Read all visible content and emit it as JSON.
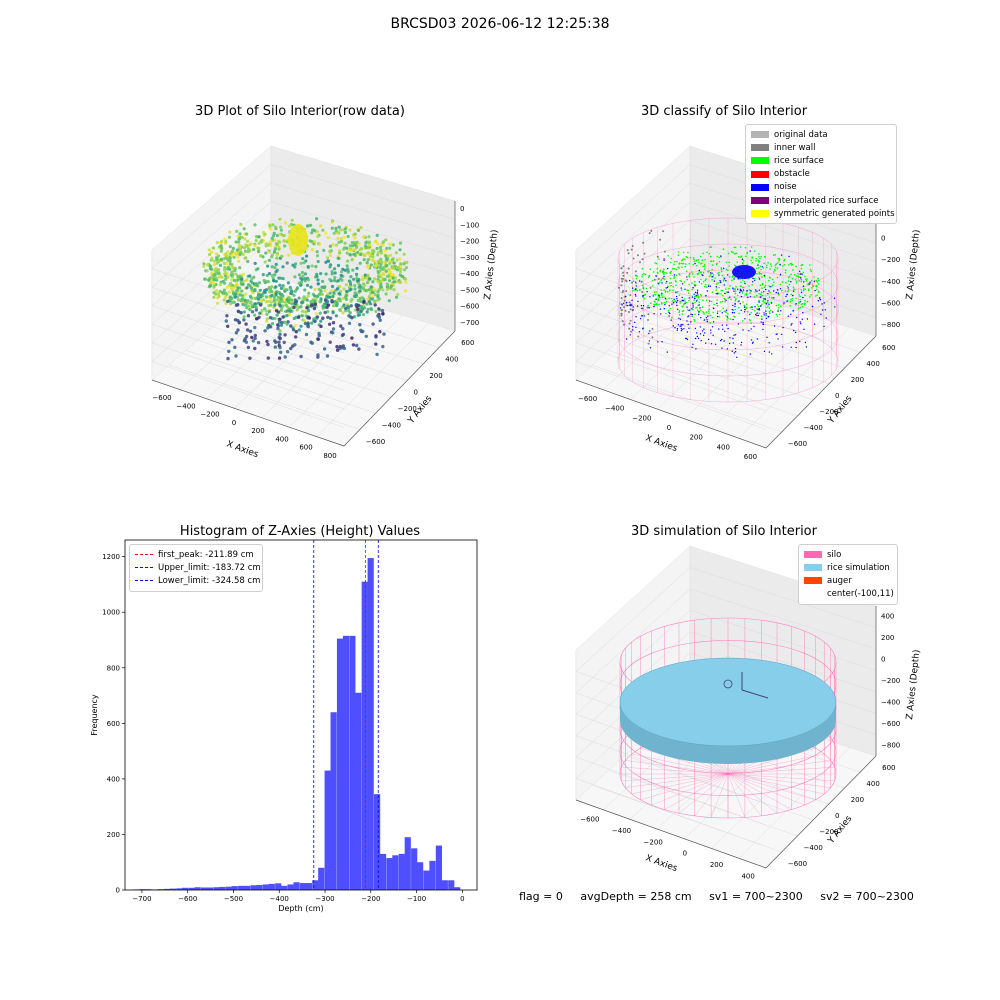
{
  "figure": {
    "suptitle": "BRCSD03 2026-06-12 12:25:38"
  },
  "chart_data": [
    {
      "type": "scatter",
      "title": "3D Plot of Silo Interior(row data)",
      "xlabel": "X Axies",
      "ylabel": "Y Axies",
      "zlabel": "Z Axies (Depth)",
      "x_ticks": [
        "−600",
        "−400",
        "−200",
        "0",
        "200",
        "400",
        "600",
        "800"
      ],
      "y_ticks": [
        "−600",
        "−400",
        "−200",
        "0",
        "200",
        "400",
        "600"
      ],
      "z_ticks": [
        "0",
        "−100",
        "−200",
        "−300",
        "−400",
        "−500",
        "−600",
        "−700"
      ],
      "colormap": "viridis"
    },
    {
      "type": "scatter",
      "title": "3D classify of Silo Interior",
      "xlabel": "X Axies",
      "ylabel": "Y Axies",
      "zlabel": "Z Axies (Depth)",
      "x_ticks": [
        "−600",
        "−400",
        "−200",
        "0",
        "200",
        "400",
        "600"
      ],
      "y_ticks": [
        "−600",
        "−400",
        "−200",
        "0",
        "200",
        "400",
        "600"
      ],
      "z_ticks": [
        "200",
        "0",
        "−200",
        "−400",
        "−600",
        "−800"
      ],
      "legend": [
        {
          "label": "original data",
          "color": "#b3b3b3"
        },
        {
          "label": "inner wall",
          "color": "#808080"
        },
        {
          "label": "rice surface",
          "color": "#00ff00"
        },
        {
          "label": "obstacle",
          "color": "#ff0000"
        },
        {
          "label": "noise",
          "color": "#0000ff"
        },
        {
          "label": "interpolated rice surface",
          "color": "#800080"
        },
        {
          "label": "symmetric generated points",
          "color": "#ffff00"
        }
      ]
    },
    {
      "type": "bar",
      "title": "Histogram of Z-Axies (Height) Values",
      "xlabel": "Depth (cm)",
      "ylabel": "Frequency",
      "xlim": [
        -737,
        32
      ],
      "ylim": [
        0,
        1260
      ],
      "x_ticks": [
        -700,
        -600,
        -500,
        -400,
        -300,
        -200,
        -100,
        0
      ],
      "x_tick_labels": [
        "−700",
        "−600",
        "−500",
        "−400",
        "−300",
        "−200",
        "−100",
        "0"
      ],
      "y_ticks": [
        0,
        200,
        400,
        600,
        800,
        1000,
        1200
      ],
      "y_tick_labels": [
        "0",
        "200",
        "400",
        "600",
        "800",
        "1000",
        "1200"
      ],
      "bin_width": 13.5,
      "bins": [
        [
          -720,
          2
        ],
        [
          -706,
          3
        ],
        [
          -693,
          3
        ],
        [
          -679,
          2
        ],
        [
          -666,
          3
        ],
        [
          -652,
          4
        ],
        [
          -639,
          5
        ],
        [
          -625,
          6
        ],
        [
          -612,
          8
        ],
        [
          -598,
          8
        ],
        [
          -585,
          10
        ],
        [
          -571,
          9
        ],
        [
          -558,
          9
        ],
        [
          -544,
          10
        ],
        [
          -531,
          11
        ],
        [
          -517,
          12
        ],
        [
          -504,
          14
        ],
        [
          -490,
          15
        ],
        [
          -477,
          15
        ],
        [
          -463,
          17
        ],
        [
          -450,
          18
        ],
        [
          -436,
          20
        ],
        [
          -423,
          22
        ],
        [
          -409,
          24
        ],
        [
          -396,
          15
        ],
        [
          -382,
          20
        ],
        [
          -369,
          28
        ],
        [
          -355,
          25
        ],
        [
          -342,
          25
        ],
        [
          -328,
          35
        ],
        [
          -315,
          80
        ],
        [
          -301,
          430
        ],
        [
          -288,
          640
        ],
        [
          -274,
          905
        ],
        [
          -261,
          915
        ],
        [
          -247,
          915
        ],
        [
          -234,
          710
        ],
        [
          -220,
          1110
        ],
        [
          -207,
          1195
        ],
        [
          -193,
          345
        ],
        [
          -180,
          130
        ],
        [
          -166,
          115
        ],
        [
          -153,
          125
        ],
        [
          -139,
          130
        ],
        [
          -126,
          190
        ],
        [
          -112,
          150
        ],
        [
          -99,
          100
        ],
        [
          -85,
          70
        ],
        [
          -72,
          105
        ],
        [
          -58,
          160
        ],
        [
          -45,
          35
        ],
        [
          -31,
          35
        ],
        [
          -18,
          10
        ]
      ],
      "lines": [
        {
          "label": "first_peak: -211.89 cm",
          "value": -211.89,
          "color": "#ff0000"
        },
        {
          "label": "Upper_limit: -183.72 cm",
          "value": -183.72,
          "color": "#0000ff"
        },
        {
          "label": "Lower_limit: -324.58 cm",
          "value": -324.58,
          "color": "#0000ff"
        }
      ],
      "bar_color": "#4b4bff"
    },
    {
      "type": "scatter",
      "title": "3D simulation of Silo Interior",
      "xlabel": "X Axies",
      "ylabel": "Y Axies",
      "zlabel": "Z Axies (Depth)",
      "x_ticks": [
        "−600",
        "−400",
        "−200",
        "0",
        "200",
        "400"
      ],
      "y_ticks": [
        "−600",
        "−400",
        "−200",
        "0",
        "200",
        "400",
        "600"
      ],
      "z_ticks": [
        "400",
        "200",
        "0",
        "−200",
        "−400",
        "−600",
        "−800"
      ],
      "legend": [
        {
          "label": "silo",
          "color": "#ff69b4"
        },
        {
          "label": "rice simulation",
          "color": "#87ceeb"
        },
        {
          "label": "auger",
          "color": "#ff4500"
        },
        {
          "label": "center(-100,11)",
          "color": "none"
        }
      ]
    }
  ],
  "footer": {
    "flag": "flag = 0",
    "avg_depth": "avgDepth = 258 cm",
    "sv1": "sv1 = 700~2300",
    "sv2": "sv2 = 700~2300"
  }
}
